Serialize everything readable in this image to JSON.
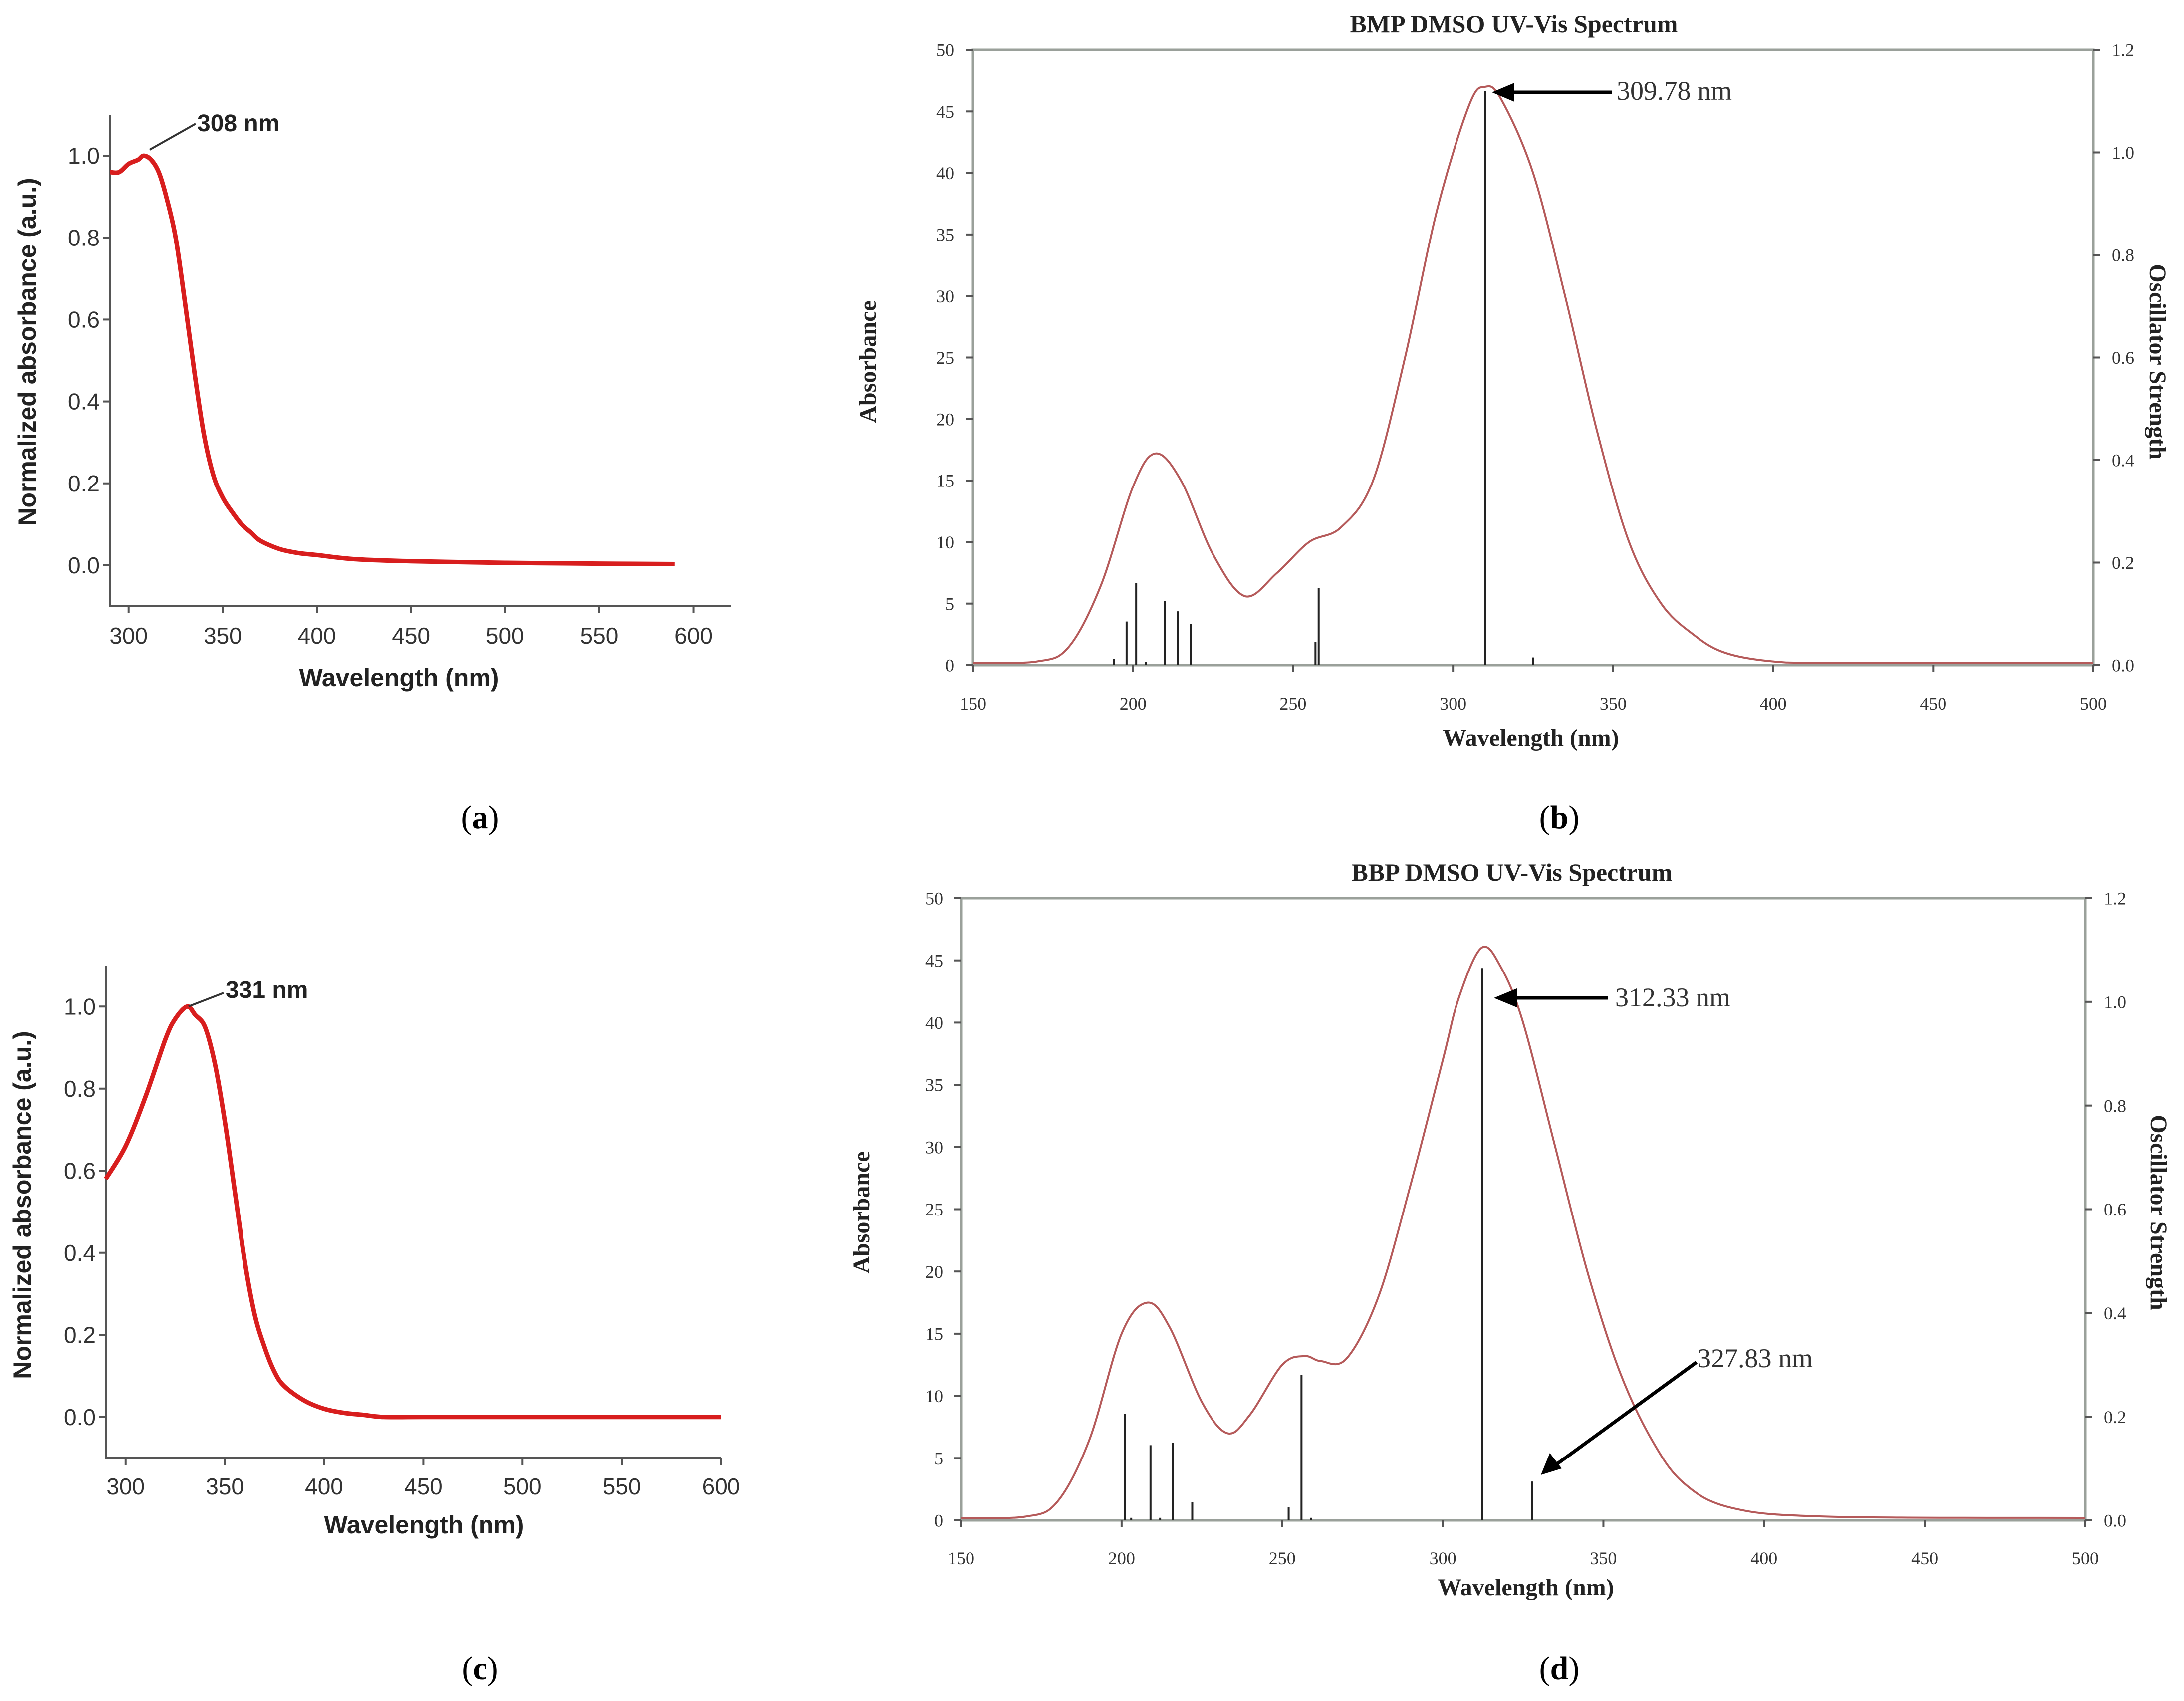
{
  "figure": {
    "captions": {
      "a": "(a)",
      "b": "(b)",
      "c": "(c)",
      "d": "(d)"
    }
  },
  "colors": {
    "exp_curve": "#d81e1e",
    "calc_curve": "#b55a5a",
    "axis_frame": "#9aa09a",
    "stick": "#222222",
    "text": "#333333"
  },
  "chart_data": [
    {
      "id": "a",
      "type": "line",
      "title": "",
      "xlabel": "Wavelength (nm)",
      "ylabel": "Normalized absorbance (a.u.)",
      "xlim": [
        290,
        620
      ],
      "ylim": [
        -0.1,
        1.1
      ],
      "xticks": [
        "300",
        "350",
        "400",
        "450",
        "500",
        "550",
        "600"
      ],
      "yticks": [
        "0.0",
        "0.2",
        "0.4",
        "0.6",
        "0.8",
        "1.0"
      ],
      "annotation": "308 nm",
      "series": [
        {
          "name": "Normalized absorbance",
          "x": [
            290,
            295,
            300,
            305,
            308,
            312,
            316,
            320,
            325,
            330,
            335,
            340,
            345,
            350,
            355,
            360,
            365,
            370,
            380,
            390,
            400,
            420,
            450,
            500,
            550,
            590
          ],
          "y": [
            0.96,
            0.96,
            0.98,
            0.99,
            1.0,
            0.99,
            0.96,
            0.9,
            0.8,
            0.64,
            0.47,
            0.32,
            0.22,
            0.165,
            0.13,
            0.1,
            0.08,
            0.06,
            0.04,
            0.03,
            0.025,
            0.015,
            0.01,
            0.006,
            0.004,
            0.003
          ]
        }
      ]
    },
    {
      "id": "b",
      "type": "line",
      "title": "BMP DMSO UV-Vis Spectrum",
      "xlabel": "Wavelength (nm)",
      "ylabel": "Absorbance",
      "y2label": "Oscillator Strength",
      "xlim": [
        150,
        500
      ],
      "ylim": [
        0,
        50
      ],
      "y2lim": [
        0,
        1.2
      ],
      "xticks": [
        "150",
        "200",
        "250",
        "300",
        "350",
        "400",
        "450",
        "500"
      ],
      "yticks": [
        "0",
        "5",
        "10",
        "15",
        "20",
        "25",
        "30",
        "35",
        "40",
        "45",
        "50"
      ],
      "y2ticks": [
        "0.0",
        "0.2",
        "0.4",
        "0.6",
        "0.8",
        "1.0",
        "1.2"
      ],
      "annotation": "309.78 nm",
      "series": [
        {
          "name": "Absorbance",
          "x": [
            150,
            170,
            180,
            190,
            200,
            207,
            215,
            225,
            235,
            245,
            255,
            265,
            275,
            285,
            295,
            305,
            310,
            315,
            325,
            335,
            345,
            355,
            365,
            375,
            385,
            400,
            420,
            500
          ],
          "y": [
            0.2,
            0.3,
            1.5,
            6.5,
            14.5,
            17.2,
            15.0,
            9.0,
            5.6,
            7.5,
            10.0,
            11.2,
            15.0,
            25.0,
            37.0,
            45.5,
            47.0,
            46.0,
            40.0,
            30.0,
            19.0,
            10.0,
            5.0,
            2.5,
            1.0,
            0.3,
            0.2,
            0.2
          ]
        }
      ],
      "sticks": {
        "x": [
          194,
          198,
          201,
          204,
          210,
          214,
          218,
          257,
          258,
          310,
          325
        ],
        "y": [
          0.012,
          0.085,
          0.16,
          0.006,
          0.125,
          0.105,
          0.08,
          0.045,
          0.15,
          1.12,
          0.015
        ]
      }
    },
    {
      "id": "c",
      "type": "line",
      "title": "",
      "xlabel": "Wavelength (nm)",
      "ylabel": "Normalized absorbance (a.u.)",
      "xlim": [
        290,
        600
      ],
      "ylim": [
        -0.1,
        1.1
      ],
      "xticks": [
        "300",
        "350",
        "400",
        "450",
        "500",
        "550",
        "600"
      ],
      "yticks": [
        "0.0",
        "0.2",
        "0.4",
        "0.6",
        "0.8",
        "1.0"
      ],
      "annotation": "331 nm",
      "series": [
        {
          "name": "Normalized absorbance",
          "x": [
            290,
            300,
            310,
            320,
            325,
            331,
            335,
            340,
            345,
            350,
            355,
            360,
            365,
            370,
            375,
            380,
            390,
            400,
            410,
            420,
            430,
            450,
            500,
            550,
            600
          ],
          "y": [
            0.58,
            0.66,
            0.78,
            0.92,
            0.97,
            1.0,
            0.98,
            0.95,
            0.86,
            0.72,
            0.55,
            0.38,
            0.25,
            0.17,
            0.11,
            0.075,
            0.04,
            0.02,
            0.01,
            0.005,
            0.0,
            0.0,
            0.0,
            0.0,
            0.0
          ]
        }
      ]
    },
    {
      "id": "d",
      "type": "line",
      "title": "BBP DMSO UV-Vis Spectrum",
      "xlabel": "Wavelength (nm)",
      "ylabel": "Absorbance",
      "y2label": "Oscillator Strength",
      "xlim": [
        150,
        500
      ],
      "ylim": [
        0,
        50
      ],
      "y2lim": [
        0,
        1.2
      ],
      "xticks": [
        "150",
        "200",
        "250",
        "300",
        "350",
        "400",
        "450",
        "500"
      ],
      "yticks": [
        "0",
        "5",
        "10",
        "15",
        "20",
        "25",
        "30",
        "35",
        "40",
        "45",
        "50"
      ],
      "y2ticks": [
        "0.0",
        "0.2",
        "0.4",
        "0.6",
        "0.8",
        "1.0",
        "1.2"
      ],
      "annotations": [
        "312.33 nm",
        "327.83 nm"
      ],
      "series": [
        {
          "name": "Absorbance",
          "x": [
            150,
            170,
            180,
            190,
            200,
            208,
            215,
            225,
            233,
            240,
            250,
            257,
            262,
            270,
            280,
            290,
            300,
            305,
            312,
            318,
            325,
            335,
            345,
            355,
            365,
            375,
            390,
            420,
            500
          ],
          "y": [
            0.2,
            0.3,
            1.5,
            6.5,
            15.0,
            17.5,
            15.5,
            9.5,
            7.0,
            8.5,
            12.5,
            13.2,
            12.8,
            13.0,
            18.0,
            27.0,
            37.0,
            42.0,
            46.0,
            44.5,
            40.0,
            30.0,
            20.0,
            12.0,
            6.5,
            3.0,
            1.0,
            0.3,
            0.2
          ]
        }
      ],
      "sticks": {
        "x": [
          201,
          203,
          209,
          212,
          216,
          222,
          252,
          256,
          259,
          312.33,
          327.83
        ],
        "y": [
          0.205,
          0.005,
          0.145,
          0.005,
          0.15,
          0.035,
          0.025,
          0.28,
          0.005,
          1.065,
          0.075
        ]
      }
    }
  ]
}
